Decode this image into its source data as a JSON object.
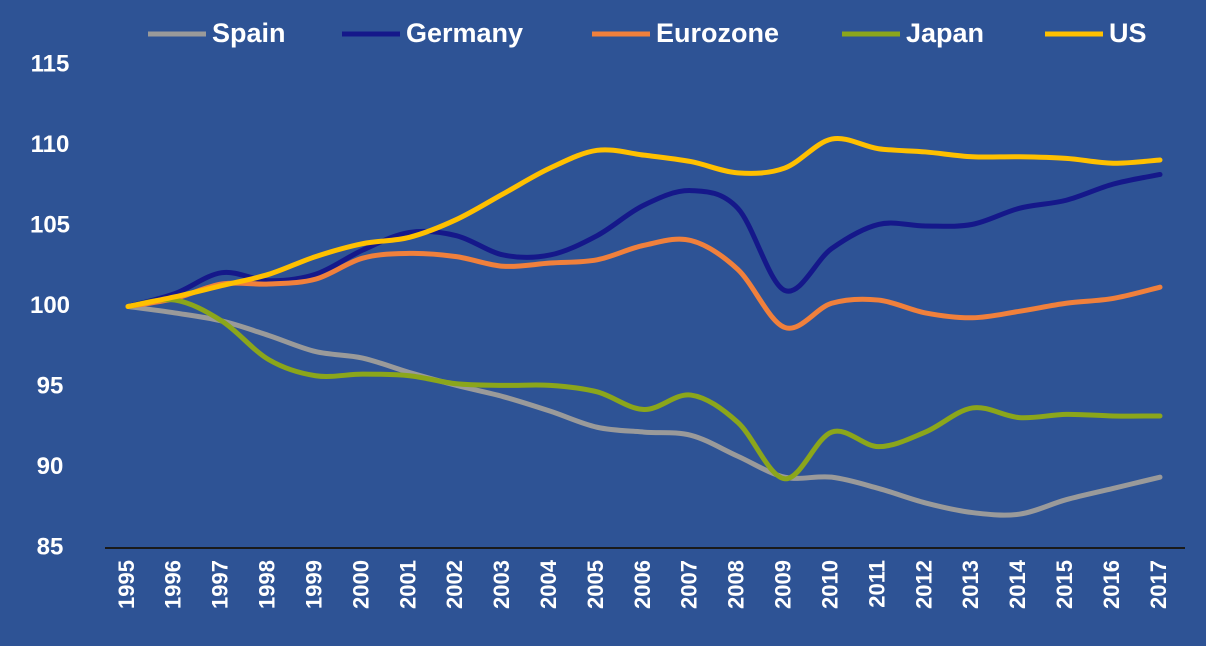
{
  "chart_data": {
    "type": "line",
    "categories": [
      "1995",
      "1996",
      "1997",
      "1998",
      "1999",
      "2000",
      "2001",
      "2002",
      "2003",
      "2004",
      "2005",
      "2006",
      "2007",
      "2008",
      "2009",
      "2010",
      "2011",
      "2012",
      "2013",
      "2014",
      "2015",
      "2016",
      "2017"
    ],
    "series": [
      {
        "name": "Spain",
        "color": "#9a9a9a",
        "values": [
          100,
          99.6,
          99.1,
          98.2,
          97.2,
          96.8,
          95.9,
          95.1,
          94.4,
          93.5,
          92.5,
          92.2,
          92.0,
          90.7,
          89.4,
          89.4,
          88.7,
          87.8,
          87.2,
          87.1,
          88.0,
          88.7,
          89.4
        ]
      },
      {
        "name": "Germany",
        "color": "#15188a",
        "values": [
          100,
          100.8,
          102.1,
          101.6,
          102.0,
          103.5,
          104.6,
          104.4,
          103.2,
          103.2,
          104.4,
          106.3,
          107.2,
          106.1,
          101.0,
          103.6,
          105.1,
          105.0,
          105.1,
          106.1,
          106.6,
          107.6,
          108.2
        ]
      },
      {
        "name": "Eurozone",
        "color": "#f0803c",
        "values": [
          100,
          100.5,
          101.4,
          101.4,
          101.7,
          103.0,
          103.3,
          103.1,
          102.5,
          102.7,
          102.9,
          103.8,
          104.1,
          102.3,
          98.7,
          100.2,
          100.4,
          99.6,
          99.3,
          99.7,
          100.2,
          100.5,
          101.2
        ]
      },
      {
        "name": "Japan",
        "color": "#8ba61b",
        "values": [
          100,
          100.4,
          99.1,
          96.7,
          95.7,
          95.8,
          95.7,
          95.2,
          95.1,
          95.1,
          94.7,
          93.6,
          94.5,
          92.8,
          89.3,
          92.2,
          91.3,
          92.2,
          93.7,
          93.1,
          93.3,
          93.2,
          93.2
        ]
      },
      {
        "name": "US",
        "color": "#ffc000",
        "values": [
          100,
          100.6,
          101.3,
          102.0,
          103.1,
          103.9,
          104.3,
          105.4,
          107.0,
          108.6,
          109.7,
          109.4,
          109.0,
          108.3,
          108.6,
          110.4,
          109.8,
          109.6,
          109.3,
          109.3,
          109.2,
          108.9,
          109.1
        ]
      }
    ],
    "ylim": [
      85,
      115
    ],
    "yticks": [
      85,
      90,
      95,
      100,
      105,
      110,
      115
    ],
    "grid": false
  }
}
